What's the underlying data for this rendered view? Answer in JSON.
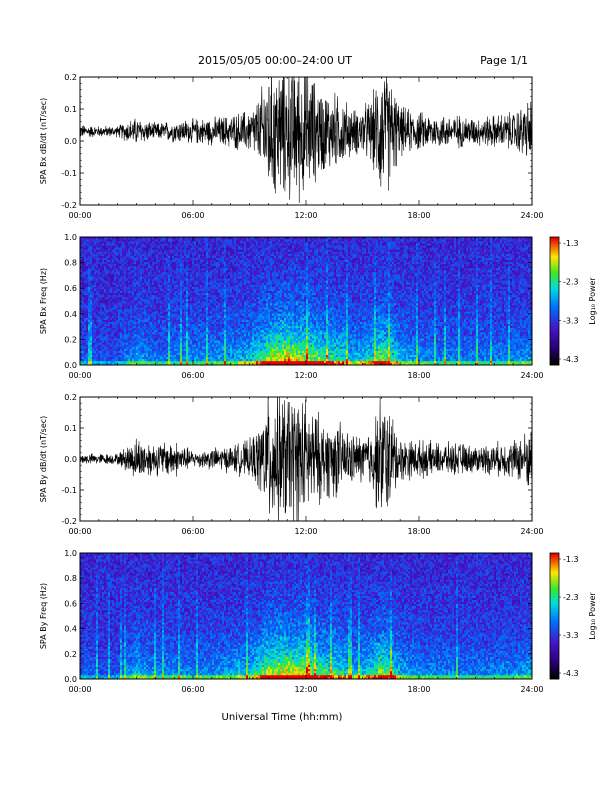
{
  "header": {
    "date_range": "2015/05/05  00:00–24:00 UT",
    "page": "Page 1/1"
  },
  "xaxis": {
    "label": "Universal Time (hh:mm)",
    "ticks": [
      "00:00",
      "06:00",
      "12:00",
      "18:00",
      "24:00"
    ]
  },
  "colors": {
    "trace": "#000000",
    "background": "#ffffff"
  },
  "chart_data": [
    {
      "type": "line",
      "ylabel": "SPA Bx dB/dt (nT/sec)",
      "xlim": [
        0,
        24
      ],
      "ylim": [
        -0.2,
        0.2
      ],
      "yticks": [
        "0.2",
        "0.1",
        "0.0",
        "-0.1",
        "-0.2"
      ],
      "baseline": 0.03,
      "envelope": {
        "x": [
          0,
          1,
          2,
          2.5,
          3,
          4,
          5,
          6,
          7,
          8,
          9,
          9.5,
          10,
          10.5,
          11,
          11.5,
          12,
          12.5,
          13,
          13.5,
          14,
          14.5,
          15,
          15.5,
          16,
          16.5,
          17,
          18,
          19,
          20,
          21,
          22,
          23,
          24
        ],
        "amp": [
          0.025,
          0.02,
          0.02,
          0.04,
          0.05,
          0.03,
          0.04,
          0.045,
          0.05,
          0.06,
          0.08,
          0.12,
          0.25,
          0.25,
          0.25,
          0.25,
          0.25,
          0.18,
          0.15,
          0.14,
          0.12,
          0.08,
          0.09,
          0.12,
          0.25,
          0.2,
          0.09,
          0.07,
          0.06,
          0.06,
          0.05,
          0.06,
          0.07,
          0.12
        ]
      }
    },
    {
      "type": "heatmap",
      "ylabel": "SPA Bx Freq (Hz)",
      "xlim": [
        0,
        24
      ],
      "ylim": [
        0.0,
        1.0
      ],
      "yticks": [
        "1.0",
        "0.8",
        "0.6",
        "0.4",
        "0.2",
        "0.0"
      ],
      "colorbar": {
        "label": "Log₁₀ Power",
        "range": [
          -4.3,
          -1.3
        ],
        "ticks": [
          "-1.3",
          "-2.3",
          "-3.3",
          "-4.3"
        ]
      },
      "activity": {
        "x": [
          0,
          1,
          2,
          2.5,
          3,
          4,
          5,
          6,
          7,
          8,
          9,
          9.5,
          10,
          10.5,
          11,
          11.5,
          12,
          12.5,
          13,
          13.5,
          14,
          14.5,
          15,
          15.5,
          16,
          16.5,
          17,
          18,
          19,
          20,
          21,
          22,
          23,
          24
        ],
        "level": [
          0.2,
          0.15,
          0.15,
          0.3,
          0.4,
          0.25,
          0.3,
          0.35,
          0.35,
          0.4,
          0.5,
          0.65,
          0.9,
          0.95,
          1.0,
          0.95,
          0.9,
          0.75,
          0.7,
          0.65,
          0.6,
          0.45,
          0.5,
          0.6,
          0.85,
          0.7,
          0.45,
          0.35,
          0.3,
          0.3,
          0.28,
          0.3,
          0.32,
          0.4
        ]
      }
    },
    {
      "type": "line",
      "ylabel": "SPA By dB/dt (nT/sec)",
      "xlim": [
        0,
        24
      ],
      "ylim": [
        -0.2,
        0.2
      ],
      "yticks": [
        "0.2",
        "0.1",
        "0.0",
        "-0.1",
        "-0.2"
      ],
      "baseline": 0.0,
      "envelope": {
        "x": [
          0,
          1,
          2,
          2.5,
          3,
          4,
          5,
          6,
          7,
          8,
          9,
          9.5,
          10,
          10.5,
          11,
          11.5,
          12,
          12.5,
          13,
          13.5,
          14,
          14.5,
          15,
          15.5,
          16,
          16.5,
          17,
          18,
          19,
          20,
          21,
          22,
          23,
          24
        ],
        "amp": [
          0.02,
          0.02,
          0.02,
          0.05,
          0.08,
          0.06,
          0.07,
          0.03,
          0.04,
          0.05,
          0.07,
          0.12,
          0.25,
          0.25,
          0.25,
          0.25,
          0.22,
          0.18,
          0.14,
          0.15,
          0.12,
          0.09,
          0.09,
          0.12,
          0.25,
          0.18,
          0.08,
          0.07,
          0.06,
          0.06,
          0.05,
          0.06,
          0.07,
          0.12
        ]
      }
    },
    {
      "type": "heatmap",
      "ylabel": "SPA By Freq (Hz)",
      "xlim": [
        0,
        24
      ],
      "ylim": [
        0.0,
        1.0
      ],
      "yticks": [
        "1.0",
        "0.8",
        "0.6",
        "0.4",
        "0.2",
        "0.0"
      ],
      "colorbar": {
        "label": "Log₁₀ Power",
        "range": [
          -4.3,
          -1.3
        ],
        "ticks": [
          "-1.3",
          "-2.3",
          "-3.3",
          "-4.3"
        ]
      },
      "activity": {
        "x": [
          0,
          1,
          2,
          2.5,
          3,
          4,
          5,
          6,
          7,
          8,
          9,
          9.5,
          10,
          10.5,
          11,
          11.5,
          12,
          12.5,
          13,
          13.5,
          14,
          14.5,
          15,
          15.5,
          16,
          16.5,
          17,
          18,
          19,
          20,
          21,
          22,
          23,
          24
        ],
        "level": [
          0.2,
          0.15,
          0.15,
          0.3,
          0.45,
          0.3,
          0.35,
          0.3,
          0.35,
          0.4,
          0.5,
          0.65,
          0.9,
          0.95,
          1.0,
          0.95,
          0.9,
          0.75,
          0.7,
          0.65,
          0.6,
          0.45,
          0.5,
          0.6,
          0.85,
          0.7,
          0.45,
          0.35,
          0.3,
          0.3,
          0.28,
          0.3,
          0.32,
          0.4
        ]
      }
    }
  ]
}
